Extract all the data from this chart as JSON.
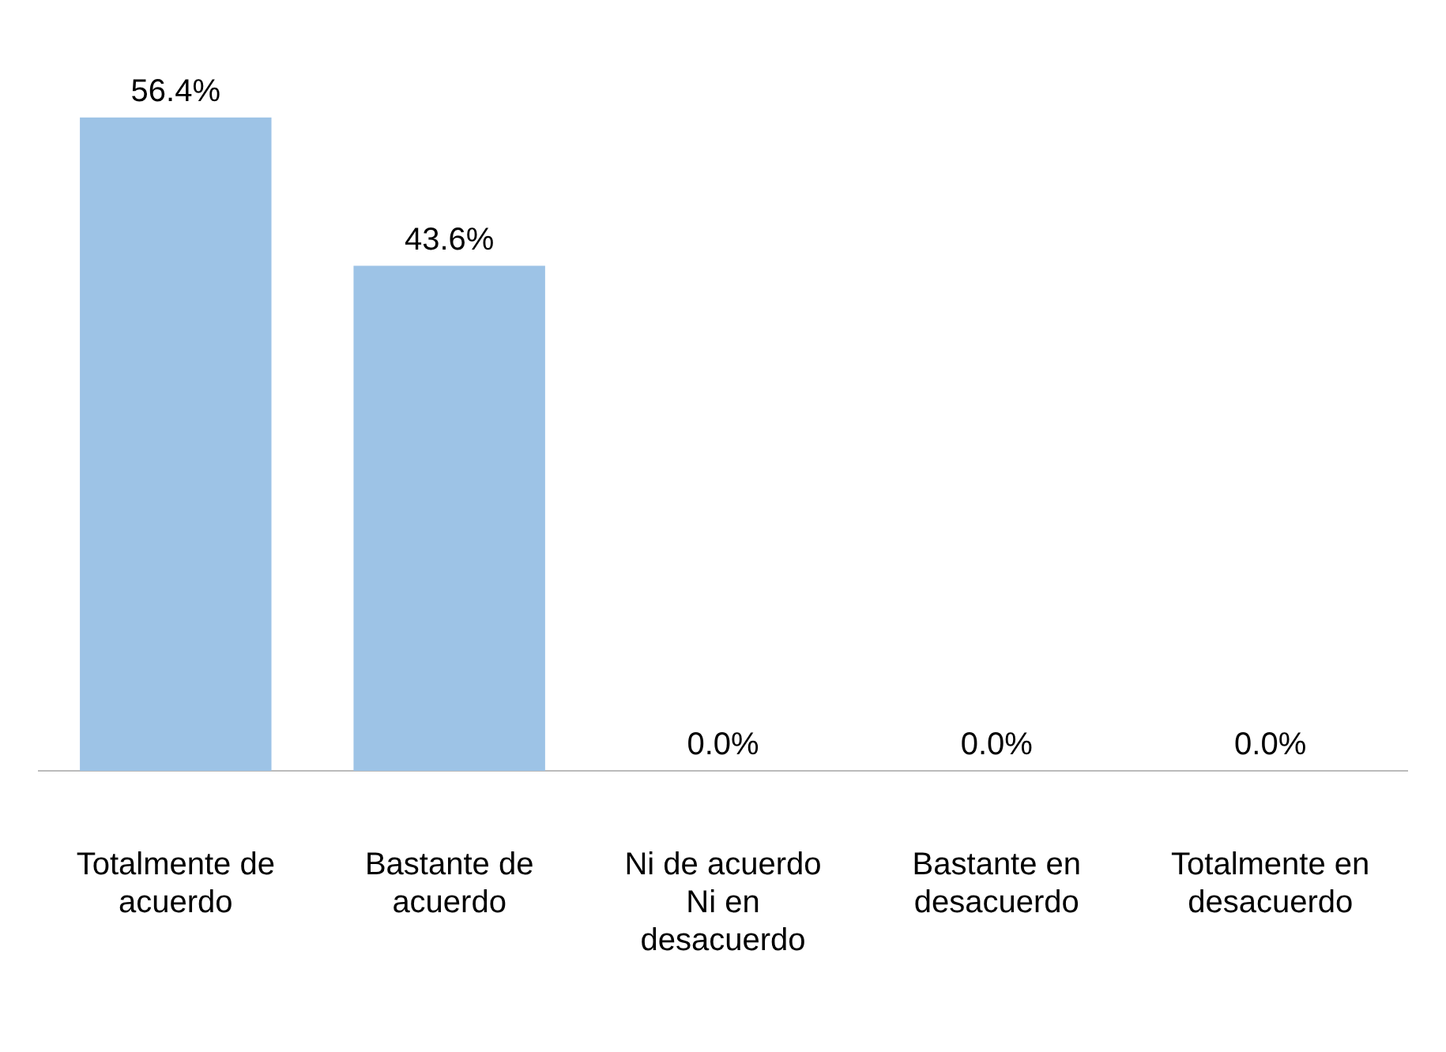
{
  "chart_data": {
    "type": "bar",
    "categories": [
      "Totalmente de acuerdo",
      "Bastante de acuerdo",
      "Ni de acuerdo Ni en desacuerdo",
      "Bastante en desacuerdo",
      "Totalmente en desacuerdo"
    ],
    "values": [
      56.4,
      43.6,
      0.0,
      0.0,
      0.0
    ],
    "value_labels": [
      "56.4%",
      "43.6%",
      "0.0%",
      "0.0%",
      "0.0%"
    ],
    "color": "#9dc3e6",
    "tick_labels": "x",
    "grid": false,
    "legend": false
  }
}
